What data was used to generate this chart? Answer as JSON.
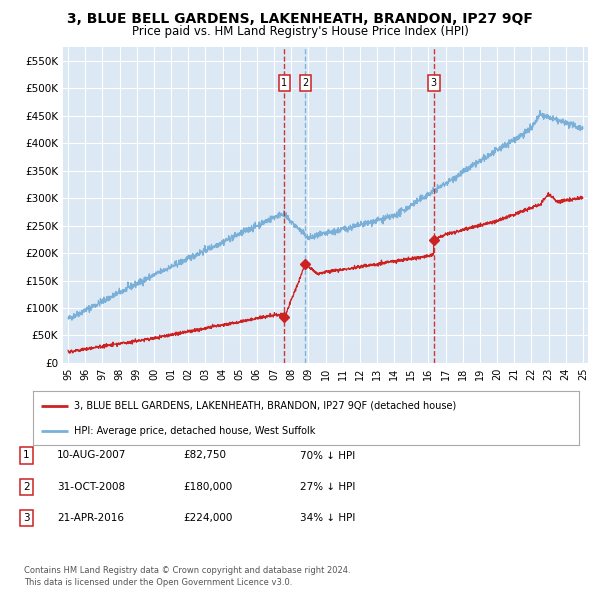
{
  "title": "3, BLUE BELL GARDENS, LAKENHEATH, BRANDON, IP27 9QF",
  "subtitle": "Price paid vs. HM Land Registry's House Price Index (HPI)",
  "title_fontsize": 10,
  "subtitle_fontsize": 8.5,
  "bg_color": "#dce9f5",
  "grid_color": "#ffffff",
  "hpi_color": "#7ab0d8",
  "price_color": "#cc2222",
  "ylim": [
    0,
    575000
  ],
  "yticks": [
    0,
    50000,
    100000,
    150000,
    200000,
    250000,
    300000,
    350000,
    400000,
    450000,
    500000,
    550000
  ],
  "ytick_labels": [
    "£0",
    "£50K",
    "£100K",
    "£150K",
    "£200K",
    "£250K",
    "£300K",
    "£350K",
    "£400K",
    "£450K",
    "£500K",
    "£550K"
  ],
  "xmin_year": 1995,
  "xmax_year": 2025,
  "xticks": [
    1995,
    1996,
    1997,
    1998,
    1999,
    2000,
    2001,
    2002,
    2003,
    2004,
    2005,
    2006,
    2007,
    2008,
    2009,
    2010,
    2011,
    2012,
    2013,
    2014,
    2015,
    2016,
    2017,
    2018,
    2019,
    2020,
    2021,
    2022,
    2023,
    2024,
    2025
  ],
  "sale_dates": [
    2007.61,
    2008.83,
    2016.31
  ],
  "sale_prices": [
    82750,
    180000,
    224000
  ],
  "sale_labels": [
    "1",
    "2",
    "3"
  ],
  "sale_vline_colors": [
    "#cc2222",
    "#7ab0d8",
    "#cc2222"
  ],
  "legend_line1": "3, BLUE BELL GARDENS, LAKENHEATH, BRANDON, IP27 9QF (detached house)",
  "legend_line2": "HPI: Average price, detached house, West Suffolk",
  "table_rows": [
    {
      "num": "1",
      "date": "10-AUG-2007",
      "price": "£82,750",
      "hpi": "70% ↓ HPI"
    },
    {
      "num": "2",
      "date": "31-OCT-2008",
      "price": "£180,000",
      "hpi": "27% ↓ HPI"
    },
    {
      "num": "3",
      "date": "21-APR-2016",
      "price": "£224,000",
      "hpi": "34% ↓ HPI"
    }
  ],
  "footnote": "Contains HM Land Registry data © Crown copyright and database right 2024.\nThis data is licensed under the Open Government Licence v3.0."
}
